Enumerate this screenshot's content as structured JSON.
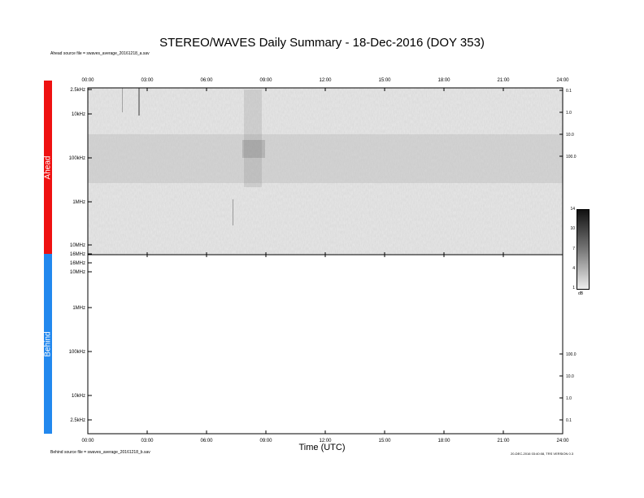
{
  "title": "STEREO/WAVES Daily Summary - 18-Dec-2016 (DOY 353)",
  "ahead_source": "Ahead source file = swaves_average_20161218_a.sav",
  "behind_source": "Behind source file = swaves_average_20161218_b.sav",
  "stamp": "20-DEC-2016 03:40:08, TRS VERSION 0.3",
  "colors": {
    "ahead": "#ee1111",
    "behind": "#2288ee"
  },
  "chart_data": {
    "type": "heatmap",
    "xlabel": "Time (UTC)",
    "x_ticks": [
      "00:00",
      "03:00",
      "06:00",
      "09:00",
      "12:00",
      "15:00",
      "18:00",
      "21:00",
      "24:00"
    ],
    "panels": [
      {
        "name": "Ahead",
        "y_ticks_left": [
          "2.5kHz",
          "10kHz",
          "100kHz",
          "1MHz",
          "10MHz",
          "16MHz"
        ],
        "y_ticks_right": [
          "0.1",
          "1.0",
          "10.0",
          "100.0"
        ],
        "data": "intensity spectrogram"
      },
      {
        "name": "Behind",
        "y_ticks_left": [
          "16MHz",
          "10MHz",
          "1MHz",
          "100kHz",
          "10kHz",
          "2.5kHz"
        ],
        "y_ticks_right": [
          "100.0",
          "10.0",
          "1.0",
          "0.1"
        ],
        "data": "none"
      }
    ],
    "colorbar": {
      "ticks": [
        "14",
        "10",
        "7",
        "4",
        "1"
      ],
      "unit": "dB",
      "range": [
        1,
        14
      ]
    }
  }
}
